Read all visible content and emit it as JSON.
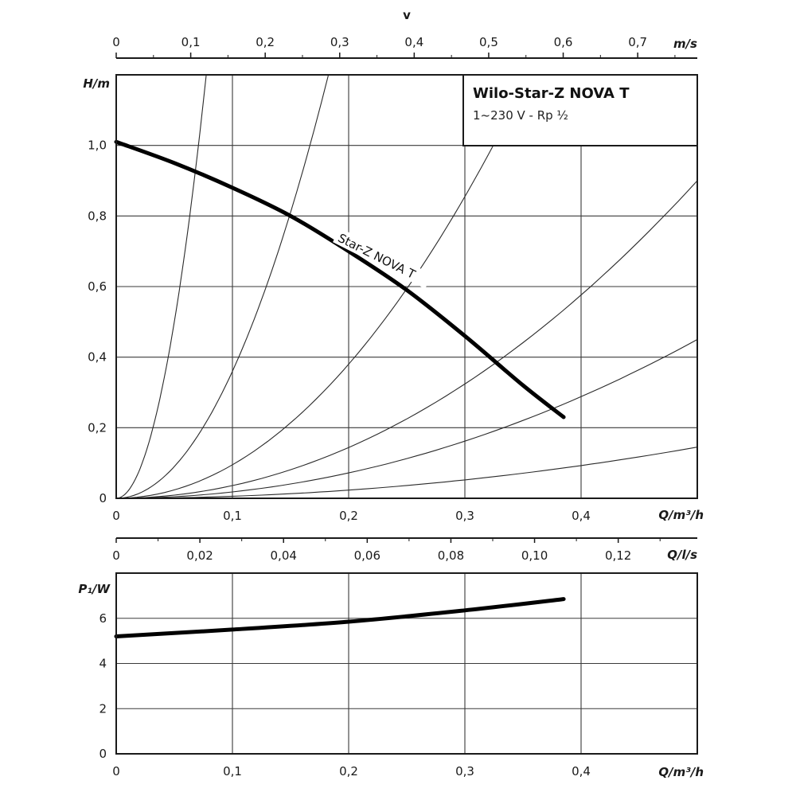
{
  "chart_data": [
    {
      "name": "head-curve",
      "type": "line",
      "title": "Wilo-Star-Z NOVA T",
      "subtitle": "1~230 V - Rp ½",
      "xlabel": "Q/m³/h",
      "ylabel": "H/m",
      "xlim": [
        0,
        0.5
      ],
      "ylim": [
        0,
        1.2
      ],
      "xticks": [
        "0",
        "0,1",
        "0,2",
        "0,3",
        "0,4"
      ],
      "yticks": [
        "0",
        "0,2",
        "0,4",
        "0,6",
        "0,8",
        "1,0"
      ],
      "top_axis": {
        "title": "v",
        "unit": "m/s",
        "max": 0.78,
        "ticks": [
          "0",
          "0,1",
          "0,2",
          "0,3",
          "0,4",
          "0,5",
          "0,6",
          "0,7"
        ]
      },
      "grid": true,
      "series": [
        {
          "name": "Star-Z NOVA T",
          "x": [
            0,
            0.05,
            0.1,
            0.15,
            0.2,
            0.25,
            0.3,
            0.35,
            0.385
          ],
          "y": [
            1.01,
            0.95,
            0.88,
            0.8,
            0.7,
            0.59,
            0.46,
            0.32,
            0.23
          ]
        }
      ],
      "system_curves": [
        {
          "name": "system-curve-1",
          "k": 200
        },
        {
          "name": "system-curve-2",
          "k": 36
        },
        {
          "name": "system-curve-3",
          "k": 9.5
        },
        {
          "name": "system-curve-4",
          "k": 3.6
        },
        {
          "name": "system-curve-5",
          "k": 1.8
        },
        {
          "name": "system-curve-6",
          "k": 0.58
        }
      ]
    },
    {
      "name": "flow-axis",
      "type": "axis",
      "xlabel": "Q/l/s",
      "max": 0.1389,
      "ticks": [
        "0",
        "0,02",
        "0,04",
        "0,06",
        "0,08",
        "0,10",
        "0,12"
      ]
    },
    {
      "name": "power-curve",
      "type": "line",
      "xlabel": "Q/m³/h",
      "ylabel": "P₁/W",
      "xlim": [
        0,
        0.5
      ],
      "ylim": [
        0,
        8
      ],
      "xticks": [
        "0",
        "0,1",
        "0,2",
        "0,3",
        "0,4"
      ],
      "yticks": [
        "0",
        "2",
        "4",
        "6"
      ],
      "grid": true,
      "series": [
        {
          "name": "P1",
          "x": [
            0,
            0.1,
            0.2,
            0.3,
            0.385
          ],
          "y": [
            5.2,
            5.5,
            5.85,
            6.35,
            6.85
          ]
        }
      ]
    }
  ]
}
